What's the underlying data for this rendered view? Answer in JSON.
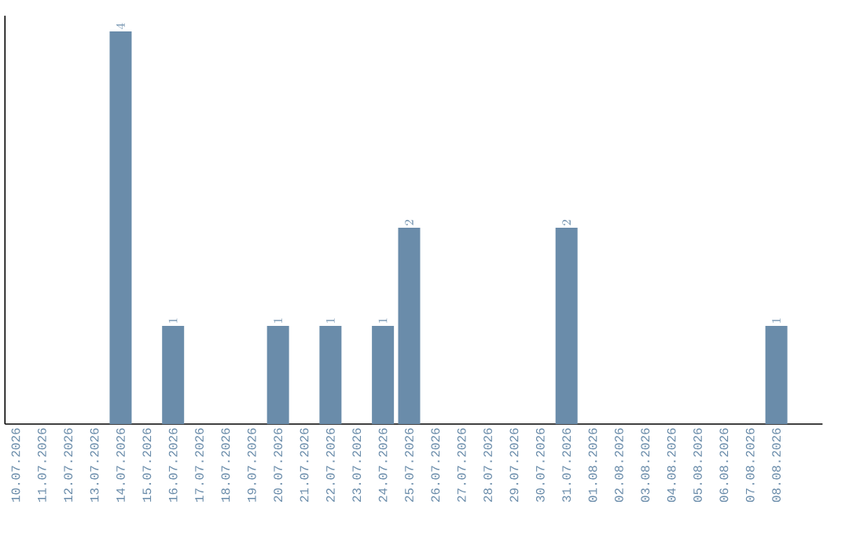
{
  "chart_data": {
    "type": "bar",
    "categories": [
      "10.07.2026",
      "11.07.2026",
      "12.07.2026",
      "13.07.2026",
      "14.07.2026",
      "15.07.2026",
      "16.07.2026",
      "17.07.2026",
      "18.07.2026",
      "19.07.2026",
      "20.07.2026",
      "21.07.2026",
      "22.07.2026",
      "23.07.2026",
      "24.07.2026",
      "25.07.2026",
      "26.07.2026",
      "27.07.2026",
      "28.07.2026",
      "29.07.2026",
      "30.07.2026",
      "31.07.2026",
      "01.08.2026",
      "02.08.2026",
      "03.08.2026",
      "04.08.2026",
      "05.08.2026",
      "06.08.2026",
      "07.08.2026",
      "08.08.2026"
    ],
    "values": [
      null,
      null,
      null,
      null,
      4,
      null,
      1,
      null,
      null,
      null,
      1,
      null,
      1,
      null,
      1,
      2,
      null,
      null,
      null,
      null,
      null,
      2,
      null,
      null,
      null,
      null,
      null,
      null,
      null,
      1
    ],
    "color": "#6a8caa",
    "data_labels": true
  }
}
